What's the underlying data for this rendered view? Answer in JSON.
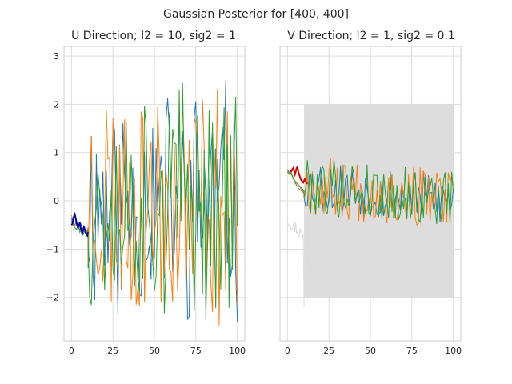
{
  "figure": {
    "title": "Gaussian Posterior for [400, 400]"
  },
  "chart_data": [
    {
      "type": "line",
      "title": "U Direction; l2 = 10, sig2 = 1",
      "xlabel": "",
      "ylabel": "",
      "xlim": [
        -4.5,
        104.5
      ],
      "ylim": [
        -2.9,
        3.2
      ],
      "xticks": [
        0,
        25,
        50,
        75,
        100
      ],
      "yticks": [
        -2,
        -1,
        0,
        1,
        2,
        3
      ],
      "grid": true,
      "legend": "none",
      "observed_range": [
        0,
        10
      ],
      "mean_color": "#0000aa",
      "series": [
        {
          "color": "#1f77b4",
          "sample_style": "noisy",
          "obs_values": [
            -0.35,
            -0.45,
            -0.5,
            -0.42,
            -0.55,
            -0.6,
            -0.48,
            -0.62,
            -0.55,
            -0.7,
            -0.6
          ],
          "amplitude": 1.35,
          "seed": 11
        },
        {
          "color": "#ff7f0e",
          "sample_style": "noisy",
          "obs_values": [
            -0.3,
            -0.4,
            -0.52,
            -0.45,
            -0.5,
            -0.55,
            -0.6,
            -0.58,
            -0.62,
            -0.65,
            -0.55
          ],
          "amplitude": 1.4,
          "seed": 23
        },
        {
          "color": "#2ca02c",
          "sample_style": "noisy",
          "obs_values": [
            -0.4,
            -0.5,
            -0.55,
            -0.6,
            -0.5,
            -0.65,
            -0.58,
            -0.7,
            -0.62,
            -0.68,
            -0.6
          ],
          "amplitude": 1.3,
          "seed": 37
        }
      ],
      "mean": {
        "color": "#0000aa",
        "values": [
          -0.5,
          -0.48,
          -0.4,
          -0.32,
          -0.28,
          -0.35,
          -0.45,
          -0.52,
          -0.55,
          -0.5,
          -0.45,
          -0.55,
          -0.62,
          -0.68,
          -0.62,
          -0.55,
          -0.6,
          -0.65,
          -0.7,
          -0.72,
          -0.65
        ]
      }
    },
    {
      "type": "line",
      "title": "V Direction; l2 = 1, sig2 = 0.1",
      "xlabel": "",
      "ylabel": "",
      "xlim": [
        -4.5,
        104.5
      ],
      "ylim": [
        -2.9,
        3.2
      ],
      "xticks": [
        0,
        25,
        50,
        75,
        100
      ],
      "yticks": [],
      "grid": true,
      "legend": "none",
      "band": {
        "x": [
          10,
          100
        ],
        "y": [
          -2,
          2
        ],
        "color": "#dddddd"
      },
      "ghost_color": "#dddddd",
      "mean_color": "#dd0000",
      "series": [
        {
          "color": "#1f77b4",
          "sample_style": "noisy",
          "obs_values": [
            0.65,
            0.6,
            0.58,
            0.5,
            0.45,
            0.38,
            0.35,
            0.3,
            0.28,
            0.25,
            0.2
          ],
          "amplitude": 0.35,
          "seed": 53
        },
        {
          "color": "#ff7f0e",
          "sample_style": "noisy",
          "obs_values": [
            0.62,
            0.58,
            0.55,
            0.52,
            0.45,
            0.4,
            0.36,
            0.32,
            0.25,
            0.22,
            0.18
          ],
          "amplitude": 0.4,
          "seed": 67
        },
        {
          "color": "#2ca02c",
          "sample_style": "noisy",
          "obs_values": [
            0.6,
            0.55,
            0.62,
            0.5,
            0.42,
            0.35,
            0.3,
            0.25,
            0.22,
            0.2,
            0.15
          ],
          "amplitude": 0.38,
          "seed": 79
        }
      ],
      "mean": {
        "color": "#dd0000",
        "values": [
          0.6,
          0.62,
          0.66,
          0.68,
          0.62,
          0.55,
          0.6,
          0.68,
          0.7,
          0.62,
          0.55,
          0.5,
          0.45,
          0.42,
          0.4,
          0.38,
          0.42,
          0.45,
          0.4,
          0.38,
          0.35
        ]
      }
    }
  ]
}
